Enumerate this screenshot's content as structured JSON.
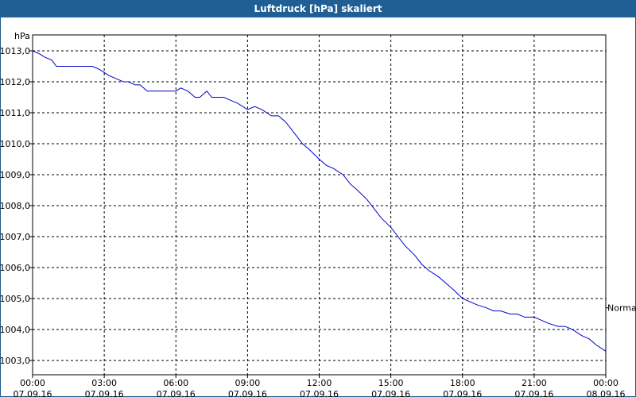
{
  "window": {
    "title": "Luftdruck [hPa] skaliert"
  },
  "colors": {
    "titlebar": "#1f5f95",
    "line": "#0000cc",
    "grid": "#000000"
  },
  "chart_data": {
    "type": "line",
    "title": "Luftdruck [hPa] skaliert",
    "ylabel": "hPa",
    "ylim": [
      1002.8,
      1013.0
    ],
    "grid": true,
    "y_ticks": [
      "1013,0",
      "1012,0",
      "1011,0",
      "1010,0",
      "1009,0",
      "1008,0",
      "1007,0",
      "1006,0",
      "1005,0",
      "1004,0",
      "1003,0"
    ],
    "y_tick_values": [
      1013,
      1012,
      1011,
      1010,
      1009,
      1008,
      1007,
      1006,
      1005,
      1004,
      1003
    ],
    "x_ticks": [
      {
        "time": "00:00",
        "date": "07.09.16",
        "hour": 0
      },
      {
        "time": "03:00",
        "date": "07.09.16",
        "hour": 3
      },
      {
        "time": "06:00",
        "date": "07.09.16",
        "hour": 6
      },
      {
        "time": "09:00",
        "date": "07.09.16",
        "hour": 9
      },
      {
        "time": "12:00",
        "date": "07.09.16",
        "hour": 12
      },
      {
        "time": "15:00",
        "date": "07.09.16",
        "hour": 15
      },
      {
        "time": "18:00",
        "date": "07.09.16",
        "hour": 18
      },
      {
        "time": "21:00",
        "date": "07.09.16",
        "hour": 21
      },
      {
        "time": "00:00",
        "date": "08.09.16",
        "hour": 24
      }
    ],
    "reference_label": "Normal",
    "reference_value": 1004.7,
    "series": [
      {
        "name": "",
        "x": [
          0,
          0.3,
          0.5,
          0.8,
          1.0,
          1.3,
          1.5,
          2.0,
          2.5,
          2.8,
          3.0,
          3.2,
          3.5,
          3.8,
          4.0,
          4.3,
          4.5,
          4.8,
          5.0,
          5.5,
          6.0,
          6.2,
          6.5,
          6.8,
          7.0,
          7.3,
          7.5,
          8.0,
          8.3,
          8.6,
          9.0,
          9.3,
          9.6,
          10.0,
          10.3,
          10.6,
          11.0,
          11.3,
          11.6,
          12.0,
          12.3,
          12.6,
          13.0,
          13.3,
          13.6,
          14.0,
          14.3,
          14.6,
          15.0,
          15.3,
          15.6,
          16.0,
          16.3,
          16.6,
          17.0,
          17.3,
          17.6,
          18.0,
          18.3,
          18.6,
          19.0,
          19.3,
          19.6,
          20.0,
          20.3,
          20.6,
          21.0,
          21.3,
          21.6,
          22.0,
          22.3,
          22.6,
          23.0,
          23.3,
          23.6,
          24.0
        ],
        "y": [
          1013.0,
          1012.9,
          1012.8,
          1012.7,
          1012.5,
          1012.5,
          1012.5,
          1012.5,
          1012.5,
          1012.4,
          1012.3,
          1012.2,
          1012.1,
          1012.0,
          1012.0,
          1011.9,
          1011.9,
          1011.7,
          1011.7,
          1011.7,
          1011.7,
          1011.8,
          1011.7,
          1011.5,
          1011.5,
          1011.7,
          1011.5,
          1011.5,
          1011.4,
          1011.3,
          1011.1,
          1011.2,
          1011.1,
          1010.9,
          1010.9,
          1010.7,
          1010.3,
          1010.0,
          1009.8,
          1009.5,
          1009.3,
          1009.2,
          1009.0,
          1008.7,
          1008.5,
          1008.2,
          1007.9,
          1007.6,
          1007.3,
          1007.0,
          1006.7,
          1006.4,
          1006.1,
          1005.9,
          1005.7,
          1005.5,
          1005.3,
          1005.0,
          1004.9,
          1004.8,
          1004.7,
          1004.6,
          1004.6,
          1004.5,
          1004.5,
          1004.4,
          1004.4,
          1004.3,
          1004.2,
          1004.1,
          1004.1,
          1004.0,
          1003.8,
          1003.7,
          1003.5,
          1003.3
        ]
      }
    ]
  }
}
